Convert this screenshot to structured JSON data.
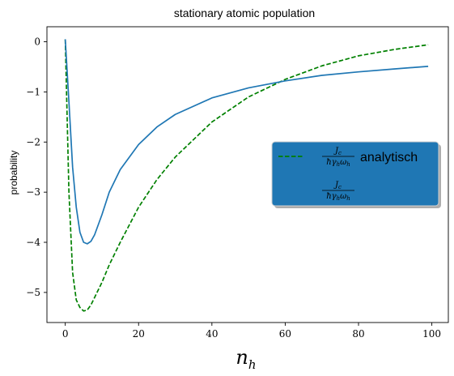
{
  "chart_data": {
    "type": "line",
    "title": "stationary atomic population",
    "xlabel": "n",
    "xlabel_sub": "h",
    "ylabel": "probability",
    "xlim": [
      -5,
      104.5
    ],
    "ylim": [
      -5.6,
      0.3
    ],
    "xticks": [
      0,
      20,
      40,
      60,
      80,
      100
    ],
    "yticks": [
      0,
      -1,
      -2,
      -3,
      -4,
      -5
    ],
    "ytick_labels": [
      "0",
      "−1",
      "−2",
      "−3",
      "−4",
      "−5"
    ],
    "grid": false,
    "legend_position": "center-right",
    "legend_background": "#1f77b4",
    "series": [
      {
        "name": "analytisch",
        "label_math": {
          "num": "J",
          "num_sub": "c",
          "den": "ħγ",
          "den_sub": "h",
          "den2": "ω",
          "den2_sub": "h"
        },
        "color": "#008000",
        "dash": "dashed",
        "x": [
          0,
          1,
          2,
          3,
          4,
          5,
          6,
          7,
          8,
          10,
          12,
          15,
          20,
          25,
          30,
          40,
          50,
          60,
          70,
          80,
          90,
          99
        ],
        "y": [
          0.05,
          -3.0,
          -4.6,
          -5.15,
          -5.3,
          -5.37,
          -5.35,
          -5.25,
          -5.1,
          -4.8,
          -4.45,
          -4.0,
          -3.3,
          -2.75,
          -2.3,
          -1.6,
          -1.1,
          -0.75,
          -0.48,
          -0.28,
          -0.15,
          -0.06
        ]
      },
      {
        "name": "",
        "label_math": {
          "num": "J",
          "num_sub": "c",
          "den": "ħγ",
          "den_sub": "h",
          "den2": "ω",
          "den2_sub": "h"
        },
        "color": "#1f77b4",
        "dash": "solid",
        "x": [
          0,
          1,
          2,
          3,
          4,
          5,
          6,
          7,
          8,
          10,
          12,
          15,
          20,
          25,
          30,
          40,
          50,
          60,
          70,
          80,
          90,
          99
        ],
        "y": [
          0.05,
          -1.2,
          -2.5,
          -3.3,
          -3.8,
          -4.0,
          -4.03,
          -3.98,
          -3.85,
          -3.45,
          -3.0,
          -2.55,
          -2.05,
          -1.7,
          -1.45,
          -1.12,
          -0.92,
          -0.78,
          -0.67,
          -0.6,
          -0.54,
          -0.49
        ]
      }
    ]
  }
}
